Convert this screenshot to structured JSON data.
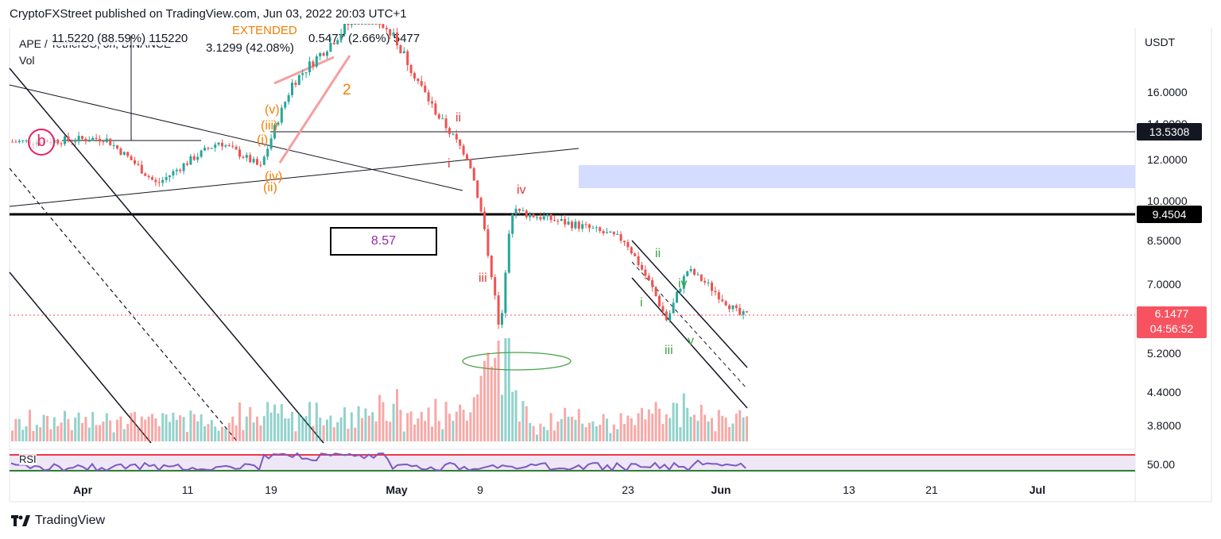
{
  "header": {
    "publisher": "CryptoFXStreet published on TradingView.com, Jun 03, 2022 20:03 UTC+1",
    "symbol": "APE / TetherUS, 3h, BINANCE",
    "vol_label": "Vol",
    "rsi_label": "RSI",
    "ohlc_fragment": "11.5220 (88.59%) 115220",
    "measure_fragment": "3.1299 (42.08%)",
    "measure_fragment2": "0.5477 (2.66%) 5477",
    "extended_label": "EXTENDED"
  },
  "axis": {
    "currency": "USDT",
    "price_ticks": [
      "16.0000",
      "14.0000",
      "12.0000",
      "10.0000",
      "8.5000",
      "7.0000",
      "5.2000",
      "4.4000",
      "3.8000"
    ],
    "rsi_tick": "50.00",
    "date_ticks": [
      {
        "label": "Apr",
        "bold": true
      },
      {
        "label": "11",
        "bold": false
      },
      {
        "label": "19",
        "bold": false
      },
      {
        "label": "May",
        "bold": true
      },
      {
        "label": "9",
        "bold": false
      },
      {
        "label": "23",
        "bold": false
      },
      {
        "label": "Jun",
        "bold": true
      },
      {
        "label": "13",
        "bold": false
      },
      {
        "label": "21",
        "bold": false
      },
      {
        "label": "Jul",
        "bold": true
      }
    ]
  },
  "price_tags": {
    "level_high": "13.5308",
    "level_mid": "9.4504",
    "last_price": "6.1477",
    "countdown": "04:56:52"
  },
  "annotations": {
    "box_value": "8.57",
    "wave_b": "b",
    "orange_waves": [
      "(v)",
      "(iii)",
      "(i)",
      "(iv)",
      "(ii)",
      "2"
    ],
    "red_waves": [
      "ii",
      "i",
      "iv",
      "iii"
    ],
    "green_waves": [
      "ii",
      "iv",
      "i",
      "v",
      "iii"
    ]
  },
  "footer": {
    "brand": "TradingView"
  },
  "colors": {
    "bull": "#26a69a",
    "bear": "#ef5350",
    "rsi_line": "#7e57c2",
    "rsi_upper": "#f23645",
    "rsi_lower": "#2e7d32",
    "zone": "#d4dcff"
  },
  "chart_data": {
    "type": "candlestick",
    "title": "APE / TetherUS, 3h, BINANCE",
    "y_unit": "USDT",
    "horizontal_levels": [
      13.5308,
      9.4504
    ],
    "last_price": 6.1477,
    "ylim": [
      3.6,
      20.0
    ],
    "x_ticks": [
      "Apr",
      "11",
      "19",
      "May",
      "9",
      "23",
      "Jun",
      "13",
      "21",
      "Jul"
    ],
    "approx_path": [
      {
        "date": "Mar 27",
        "price": 13.0
      },
      {
        "date": "Apr 3",
        "price": 13.2
      },
      {
        "date": "Apr 8",
        "price": 10.8
      },
      {
        "date": "Apr 14",
        "price": 13.0
      },
      {
        "date": "Apr 18",
        "price": 11.6
      },
      {
        "date": "Apr 21",
        "price": 16.5
      },
      {
        "date": "Apr 28",
        "price": 21.0
      },
      {
        "date": "May 1",
        "price": 19.0
      },
      {
        "date": "May 5",
        "price": 14.5
      },
      {
        "date": "May 8",
        "price": 12.0
      },
      {
        "date": "May 11",
        "price": 5.5
      },
      {
        "date": "May 12",
        "price": 9.6
      },
      {
        "date": "May 19",
        "price": 9.0
      },
      {
        "date": "May 23",
        "price": 8.5
      },
      {
        "date": "May 27",
        "price": 6.0
      },
      {
        "date": "May 29",
        "price": 7.5
      },
      {
        "date": "Jun 3",
        "price": 6.15
      }
    ]
  }
}
